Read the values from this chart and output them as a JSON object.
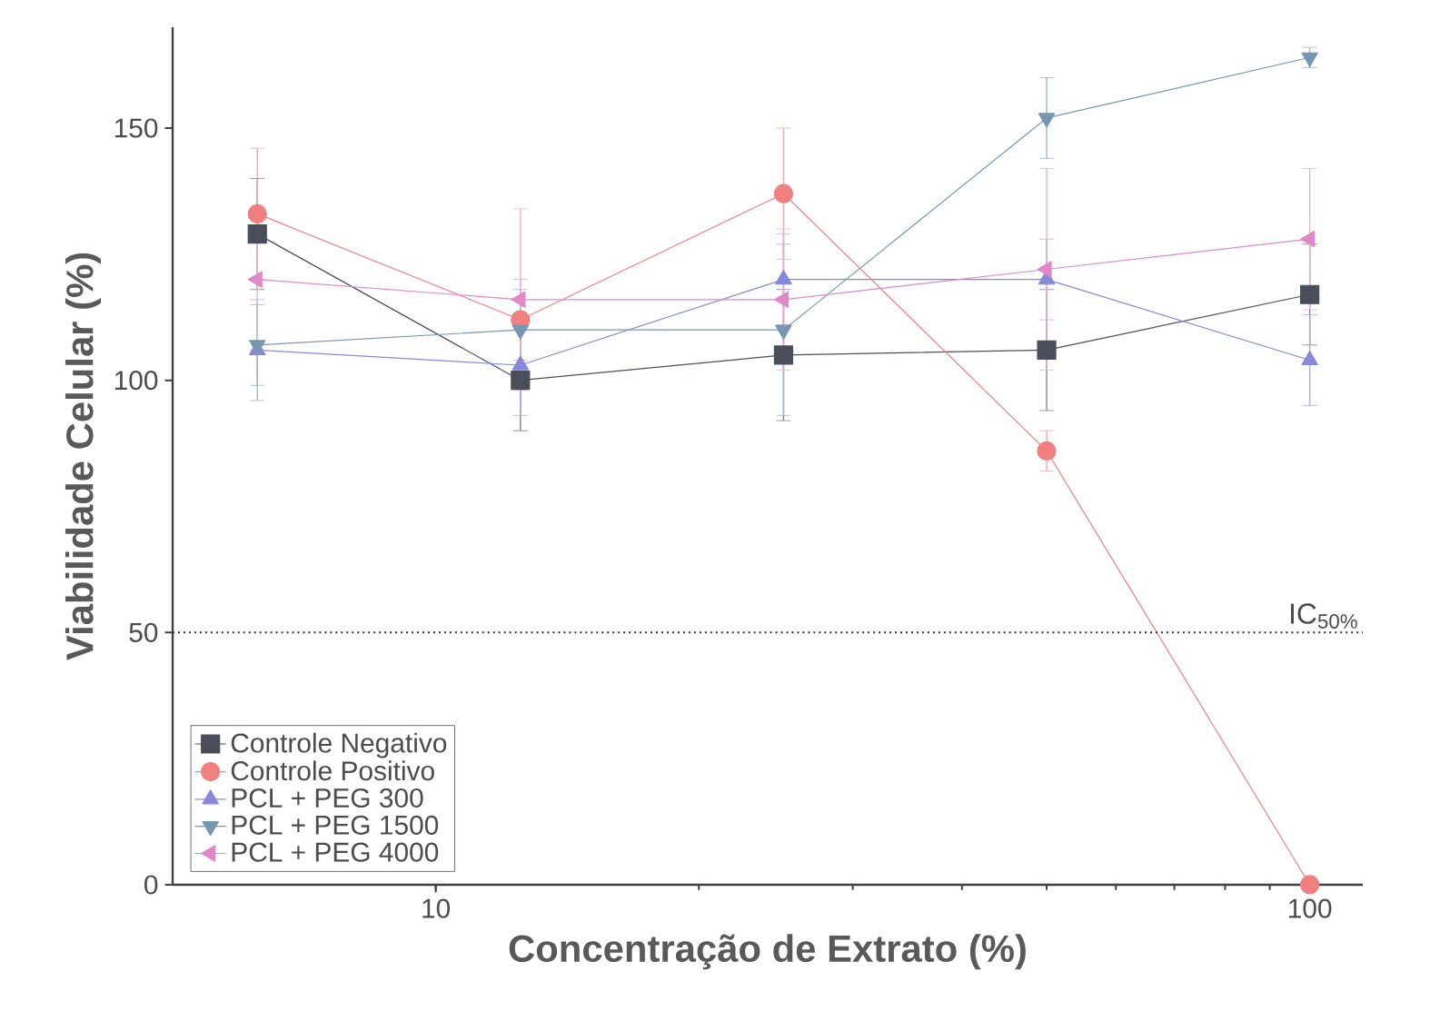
{
  "chart_data": {
    "type": "line",
    "xlabel": "Concentração de Extrato (%)",
    "ylabel": "Viabilidade Celular (%)",
    "x": [
      6.25,
      12.5,
      25,
      50,
      100
    ],
    "log": "x",
    "xlim": [
      5,
      115
    ],
    "xticks": [
      10,
      100
    ],
    "ylim": [
      0,
      170
    ],
    "yticks": [
      0,
      50,
      100,
      150
    ],
    "legend": "bottom left",
    "grid": false,
    "ref_lines": [
      {
        "axis": "y",
        "value": 50,
        "label": "IC$_{50%}$",
        "line_style": "dotted",
        "color": "#333333"
      }
    ],
    "series": [
      {
        "name": "Controle Negativo",
        "color": "#4a4e5a",
        "marker": "square",
        "values": [
          129,
          100,
          105,
          106,
          117
        ],
        "errors": [
          11,
          10,
          13,
          12,
          10
        ]
      },
      {
        "name": "Controle Positivo",
        "color": "#f08080",
        "marker": "circle",
        "values": [
          133,
          112,
          137,
          86,
          0
        ],
        "errors": [
          13,
          8,
          13,
          4,
          null
        ]
      },
      {
        "name": "PCL + PEG 300",
        "color": "#8888d8",
        "marker": "triangle",
        "values": [
          106,
          103,
          120,
          120,
          104
        ],
        "errors": [
          10,
          10,
          9,
          8,
          9
        ]
      },
      {
        "name": "PCL + PEG 1500",
        "color": "#7896b0",
        "marker": "triangle-down",
        "values": [
          107,
          110,
          110,
          152,
          164
        ],
        "errors": [
          8,
          8,
          17,
          8,
          2
        ]
      },
      {
        "name": "PCL + PEG 4000",
        "color": "#e088c8",
        "marker": "triangle-left",
        "values": [
          120,
          116,
          116,
          122,
          128
        ],
        "errors": [
          14,
          18,
          14,
          20,
          14
        ]
      }
    ]
  }
}
